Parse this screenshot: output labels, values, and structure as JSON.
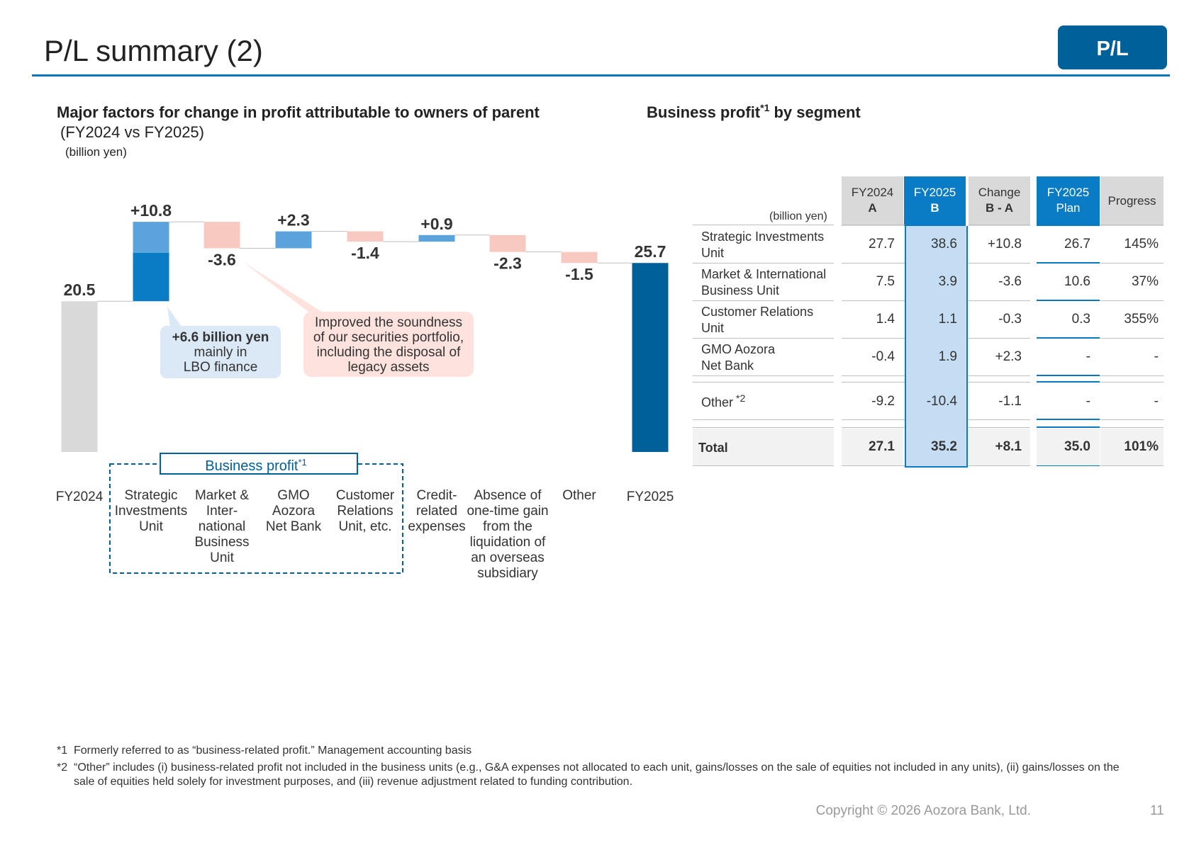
{
  "header": {
    "title": "P/L summary (2)",
    "badge": "P/L"
  },
  "left_section": {
    "title": "Major factors for change in profit attributable to owners of parent",
    "subtitle": "(FY2024 vs FY2025)",
    "unit": "(billion yen)",
    "callout_lbo": {
      "bold": "+6.6 billion yen",
      "line2": "mainly in",
      "line3": "LBO finance"
    },
    "callout_securities": {
      "lines": [
        "Improved the soundness",
        "of our securities portfolio,",
        "including the disposal of",
        "legacy assets"
      ]
    },
    "business_profit_box": {
      "label": "Business profit",
      "sup": "*1"
    }
  },
  "chart_data": {
    "type": "bar",
    "subtype": "waterfall",
    "unit": "billion yen",
    "categories": [
      [
        "FY2024"
      ],
      [
        "Strategic",
        "Investments",
        "Unit"
      ],
      [
        "Market &",
        "Inter-",
        "national",
        "Business",
        "Unit"
      ],
      [
        "GMO",
        "Aozora",
        "Net Bank"
      ],
      [
        "Customer",
        "Relations",
        "Unit, etc."
      ],
      [
        "Credit-",
        "related",
        "expenses"
      ],
      [
        "Absence of",
        "one-time gain",
        "from the",
        "liquidation of",
        "an overseas",
        "subsidiary"
      ],
      [
        "Other"
      ],
      [
        "FY2025"
      ]
    ],
    "values": [
      20.5,
      10.8,
      -3.6,
      2.3,
      -1.4,
      0.9,
      -2.3,
      -1.5,
      25.7
    ],
    "labels": [
      "20.5",
      "+10.8",
      "-3.6",
      "+2.3",
      "-1.4",
      "+0.9",
      "-2.3",
      "-1.5",
      "25.7"
    ],
    "kinds": [
      "total",
      "delta",
      "delta",
      "delta",
      "delta",
      "delta",
      "delta",
      "delta",
      "total"
    ],
    "lbo_portion": 6.6,
    "colors": {
      "start_total": "#d9d9d9",
      "end_total": "#00609a",
      "increase": "#5ba3dc",
      "increase_lbo": "#0a7cc6",
      "decrease": "#f8c9c0"
    }
  },
  "right_section": {
    "title": "Business profit",
    "title_sup": "*1",
    "title_rest": " by segment",
    "table": {
      "unit": "(billion yen)",
      "headers": [
        {
          "line1": "FY2024",
          "line2": "A"
        },
        {
          "line1": "FY2025",
          "line2": "B"
        },
        {
          "line1": "Change",
          "line2": "B - A"
        },
        {
          "line1": "FY2025",
          "line2": "Plan"
        },
        {
          "line1": "Progress",
          "line2": ""
        }
      ],
      "rows": [
        {
          "label1": "Strategic Investments",
          "label2": "Unit",
          "a": "27.7",
          "b": "38.6",
          "change": "+10.8",
          "plan": "26.7",
          "progress": "145%"
        },
        {
          "label1": "Market & International",
          "label2": "Business Unit",
          "a": "7.5",
          "b": "3.9",
          "change": "-3.6",
          "plan": "10.6",
          "progress": "37%"
        },
        {
          "label1": "Customer Relations",
          "label2": "Unit",
          "a": "1.4",
          "b": "1.1",
          "change": "-0.3",
          "plan": "0.3",
          "progress": "355%"
        },
        {
          "label1": "GMO Aozora",
          "label2": "Net Bank",
          "a": "-0.4",
          "b": "1.9",
          "change": "+2.3",
          "plan": "-",
          "progress": "-"
        }
      ],
      "other_row": {
        "label": "Other",
        "sup": "*2",
        "a": "-9.2",
        "b": "-10.4",
        "change": "-1.1",
        "plan": "-",
        "progress": "-"
      },
      "total_row": {
        "label": "Total",
        "a": "27.1",
        "b": "35.2",
        "change": "+8.1",
        "plan": "35.0",
        "progress": "101%"
      }
    }
  },
  "footnotes": [
    {
      "mark": "*1",
      "text": "Formerly referred to as “business-related profit.” Management accounting basis"
    },
    {
      "mark": "*2",
      "text": "“Other” includes (i) business-related profit not included in the business units (e.g., G&A expenses not allocated to each unit, gains/losses on the sale of equities not included in any units), (ii) gains/losses on the sale of equities held solely for investment purposes, and (iii) revenue adjustment related to funding contribution."
    }
  ],
  "footer": {
    "copyright": "Copyright © 2026 Aozora Bank, Ltd.",
    "page": "11"
  }
}
